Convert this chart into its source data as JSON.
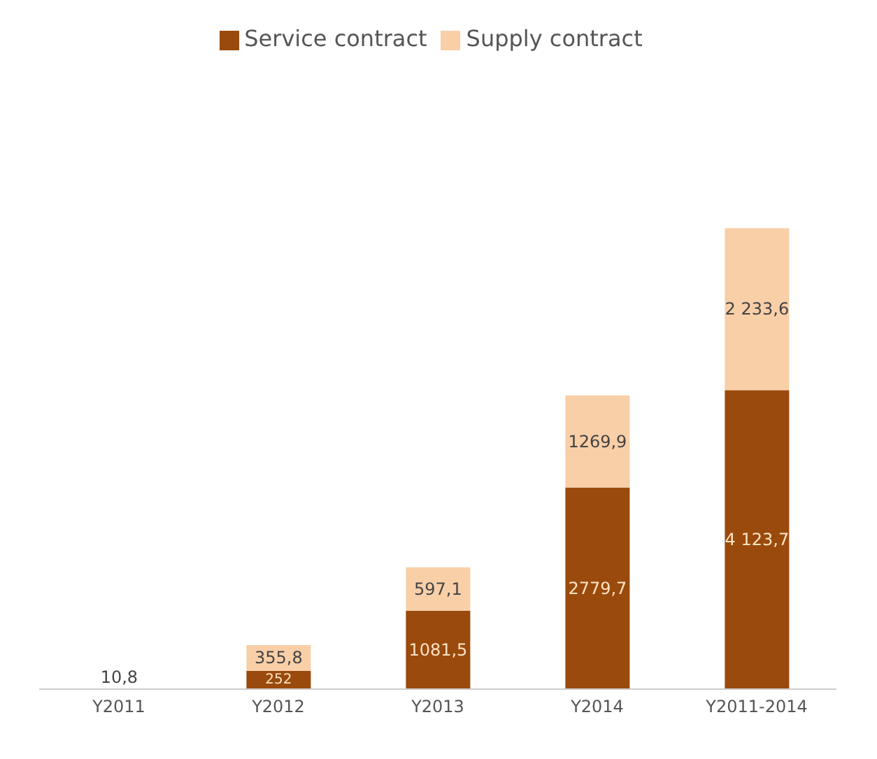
{
  "chart_data": {
    "type": "bar",
    "stacked": true,
    "legend": "top",
    "categories": [
      "Y2011",
      "Y2012",
      "Y2013",
      "Y2014",
      "Y2011-2014"
    ],
    "series": [
      {
        "name": "Service contract",
        "color": "#9a4a0c",
        "values": [
          null,
          252,
          1081.5,
          2779.7,
          4123.7
        ],
        "value_labels": [
          null,
          "252",
          "1081,5",
          "2779,7",
          "4 123,7"
        ]
      },
      {
        "name": "Supply contract",
        "color": "#f9cfa8",
        "values": [
          10.8,
          355.8,
          597.1,
          1269.9,
          2233.6
        ],
        "value_labels": [
          "10,8",
          "355,8",
          "597,1",
          "1269,9",
          "2 233,6"
        ]
      }
    ]
  }
}
